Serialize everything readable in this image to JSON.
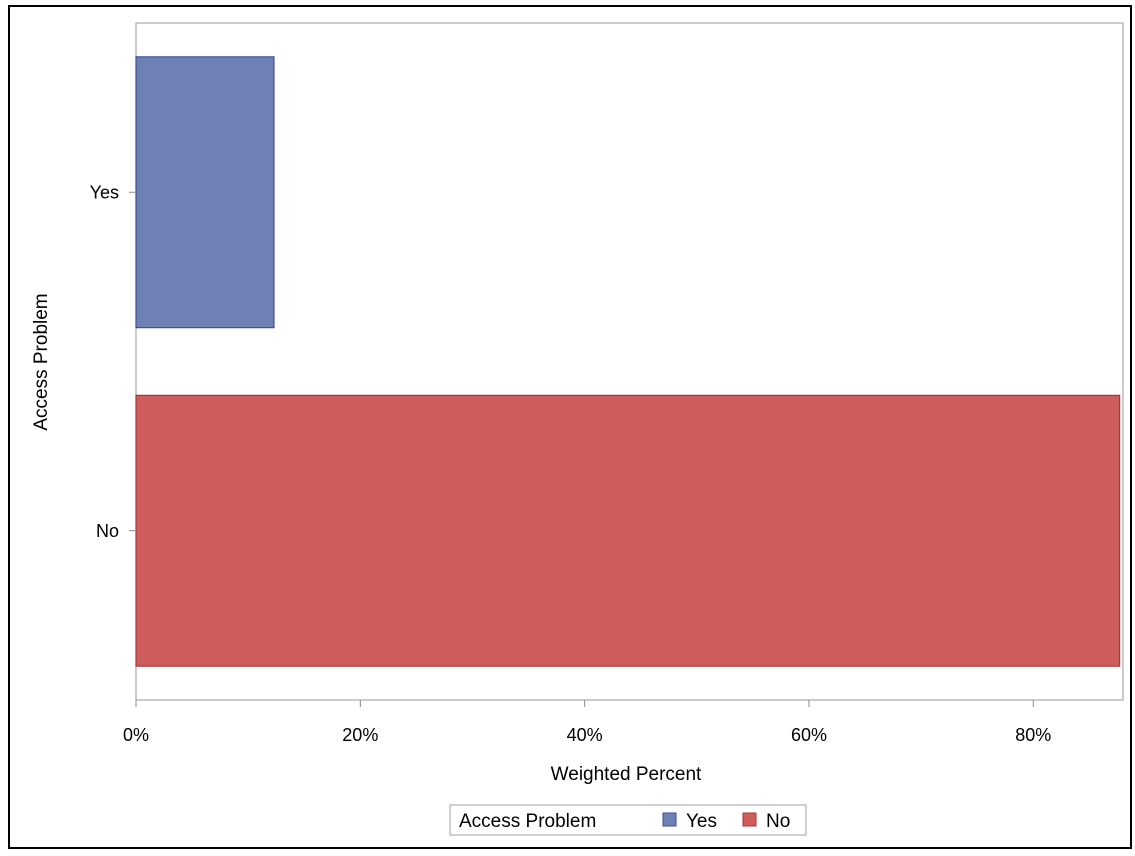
{
  "chart_data": {
    "type": "bar",
    "orientation": "horizontal",
    "categories": [
      "Yes",
      "No"
    ],
    "values": [
      12.3,
      87.7
    ],
    "colors": [
      "#6F80B5",
      "#D05D5D"
    ],
    "border_colors": [
      "#3C4E9A",
      "#A83636"
    ],
    "xlabel": "Weighted Percent",
    "ylabel": "Access Problem",
    "xlim": [
      0,
      88
    ],
    "x_ticks": [
      0,
      20,
      40,
      60,
      80
    ],
    "x_tick_labels": [
      "0%",
      "20%",
      "40%",
      "60%",
      "80%"
    ],
    "grid": false,
    "legend": {
      "title": "Access Problem",
      "placement": "bottom-center",
      "entries": [
        "Yes",
        "No"
      ]
    }
  }
}
